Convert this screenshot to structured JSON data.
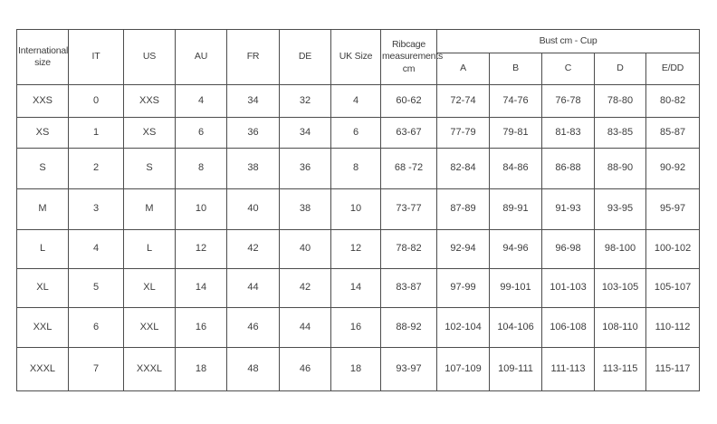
{
  "colors": {
    "background": "#ffffff",
    "border": "#4d4d4d",
    "text": "#3d3d3d"
  },
  "chart_data": {
    "type": "table",
    "headers": {
      "simple": [
        "International size",
        "IT",
        "US",
        "AU",
        "FR",
        "DE",
        "UK Size",
        "Ribcage measurements cm"
      ],
      "group": {
        "label": "Bust cm - Cup",
        "children": [
          "A",
          "B",
          "C",
          "D",
          "E/DD"
        ]
      }
    },
    "rows": [
      [
        "XXS",
        "0",
        "XXS",
        "4",
        "34",
        "32",
        "4",
        "60-62",
        "72-74",
        "74-76",
        "76-78",
        "78-80",
        "80-82"
      ],
      [
        "XS",
        "1",
        "XS",
        "6",
        "36",
        "34",
        "6",
        "63-67",
        "77-79",
        "79-81",
        "81-83",
        "83-85",
        "85-87"
      ],
      [
        "S",
        "2",
        "S",
        "8",
        "38",
        "36",
        "8",
        "68 -72",
        "82-84",
        "84-86",
        "86-88",
        "88-90",
        "90-92"
      ],
      [
        "M",
        "3",
        "M",
        "10",
        "40",
        "38",
        "10",
        "73-77",
        "87-89",
        "89-91",
        "91-93",
        "93-95",
        "95-97"
      ],
      [
        "L",
        "4",
        "L",
        "12",
        "42",
        "40",
        "12",
        "78-82",
        "92-94",
        "94-96",
        "96-98",
        "98-100",
        "100-102"
      ],
      [
        "XL",
        "5",
        "XL",
        "14",
        "44",
        "42",
        "14",
        "83-87",
        "97-99",
        "99-101",
        "101-103",
        "103-105",
        "105-107"
      ],
      [
        "XXL",
        "6",
        "XXL",
        "16",
        "46",
        "44",
        "16",
        "88-92",
        "102-104",
        "104-106",
        "106-108",
        "108-110",
        "110-112"
      ],
      [
        "XXXL",
        "7",
        "XXXL",
        "18",
        "48",
        "46",
        "18",
        "93-97",
        "107-109",
        "109-111",
        "111-113",
        "113-115",
        "115-117"
      ]
    ]
  }
}
